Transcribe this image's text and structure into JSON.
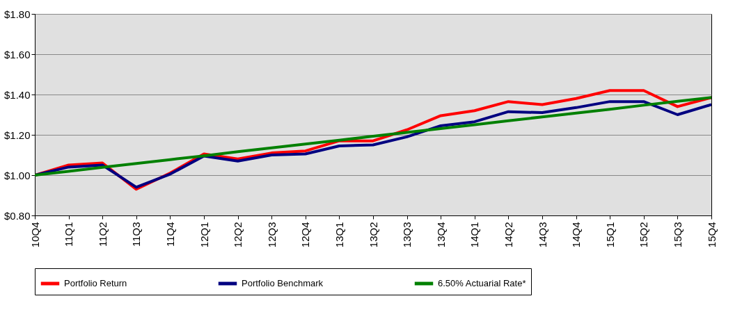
{
  "chart_data": {
    "type": "line",
    "categories": [
      "10Q4",
      "11Q1",
      "11Q2",
      "11Q3",
      "11Q4",
      "12Q1",
      "12Q2",
      "12Q3",
      "12Q4",
      "13Q1",
      "13Q2",
      "13Q3",
      "13Q4",
      "14Q1",
      "14Q2",
      "14Q3",
      "14Q4",
      "15Q1",
      "15Q2",
      "15Q3",
      "15Q4"
    ],
    "series": [
      {
        "name": "Portfolio Return",
        "color": "#ff0000",
        "values": [
          1.0,
          1.05,
          1.06,
          0.93,
          1.01,
          1.105,
          1.08,
          1.11,
          1.12,
          1.17,
          1.17,
          1.225,
          1.295,
          1.32,
          1.365,
          1.35,
          1.38,
          1.42,
          1.42,
          1.34,
          1.385
        ]
      },
      {
        "name": "Portfolio Benchmark",
        "color": "#000080",
        "values": [
          1.0,
          1.04,
          1.05,
          0.94,
          1.005,
          1.095,
          1.07,
          1.1,
          1.105,
          1.145,
          1.15,
          1.19,
          1.245,
          1.265,
          1.315,
          1.31,
          1.335,
          1.365,
          1.365,
          1.3,
          1.35
        ]
      },
      {
        "name": "6.50% Actuarial Rate*",
        "color": "#008000",
        "values": [
          1.0,
          1.019,
          1.039,
          1.058,
          1.077,
          1.096,
          1.116,
          1.135,
          1.154,
          1.173,
          1.193,
          1.212,
          1.231,
          1.25,
          1.27,
          1.289,
          1.308,
          1.327,
          1.347,
          1.366,
          1.385
        ]
      }
    ],
    "ylim": [
      0.8,
      1.8
    ],
    "yticks": [
      {
        "value": 0.8,
        "label": "$0.80"
      },
      {
        "value": 1.0,
        "label": "$1.00"
      },
      {
        "value": 1.2,
        "label": "$1.20"
      },
      {
        "value": 1.4,
        "label": "$1.40"
      },
      {
        "value": 1.6,
        "label": "$1.60"
      },
      {
        "value": 1.8,
        "label": "$1.80"
      }
    ],
    "grid": "y",
    "legend": "bottom",
    "marker": "none",
    "line_style": "solid"
  }
}
